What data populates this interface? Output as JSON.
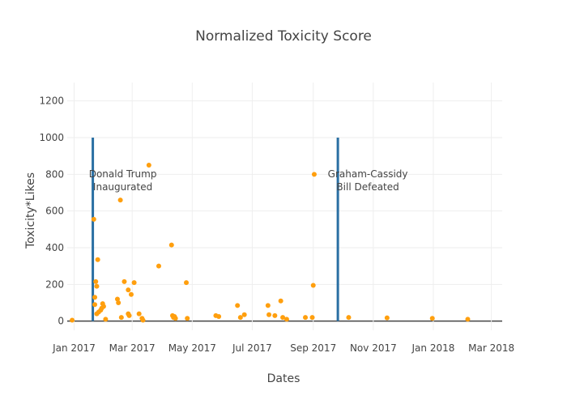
{
  "chart_data": {
    "type": "scatter",
    "title": "Normalized Toxicity Score",
    "xlabel": "Dates",
    "ylabel": "Toxicity*Likes",
    "xlim": [
      "2016-12-25",
      "2018-03-12"
    ],
    "ylim": [
      -50,
      1300
    ],
    "yticks": [
      0,
      200,
      400,
      600,
      800,
      1000,
      1200
    ],
    "xticks": [
      {
        "date": "2017-01-01",
        "label": "Jan 2017"
      },
      {
        "date": "2017-03-01",
        "label": "Mar 2017"
      },
      {
        "date": "2017-05-01",
        "label": "May 2017"
      },
      {
        "date": "2017-07-01",
        "label": "Jul 2017"
      },
      {
        "date": "2017-09-01",
        "label": "Sep 2017"
      },
      {
        "date": "2017-11-01",
        "label": "Nov 2017"
      },
      {
        "date": "2018-01-01",
        "label": "Jan 2018"
      },
      {
        "date": "2018-03-01",
        "label": "Mar 2018"
      }
    ],
    "grid": true,
    "marker_color": "#ff9f0e",
    "event_line_color": "#2a6fa3",
    "events": [
      {
        "date": "2017-01-20",
        "y_top": 1000,
        "label_line1": "Donald Trump",
        "label_line2": "Inaugurated",
        "label_y": 730
      },
      {
        "date": "2017-09-26",
        "y_top": 1000,
        "label_line1": "Graham-Cassidy",
        "label_line2": "Bill Defeated",
        "label_y": 730
      }
    ],
    "series": [
      {
        "x": [
          "2016-12-30",
          "2017-01-21",
          "2017-01-22",
          "2017-01-22",
          "2017-01-23",
          "2017-01-24",
          "2017-01-25",
          "2017-01-24",
          "2017-01-26",
          "2017-01-28",
          "2017-01-29",
          "2017-01-30",
          "2017-01-31",
          "2017-02-02",
          "2017-02-14",
          "2017-02-15",
          "2017-02-17",
          "2017-02-18",
          "2017-02-21",
          "2017-02-25",
          "2017-02-25",
          "2017-02-26",
          "2017-02-28",
          "2017-03-03",
          "2017-03-08",
          "2017-03-11",
          "2017-03-12",
          "2017-03-18",
          "2017-03-28",
          "2017-04-10",
          "2017-04-11",
          "2017-04-12",
          "2017-04-13",
          "2017-04-14",
          "2017-04-25",
          "2017-04-26",
          "2017-05-25",
          "2017-05-28",
          "2017-06-16",
          "2017-06-19",
          "2017-06-23",
          "2017-07-17",
          "2017-07-18",
          "2017-07-24",
          "2017-07-30",
          "2017-08-01",
          "2017-08-05",
          "2017-08-24",
          "2017-08-31",
          "2017-09-01",
          "2017-09-02",
          "2017-10-07",
          "2017-11-15",
          "2017-12-31",
          "2018-02-05"
        ],
        "y": [
          5,
          555,
          130,
          90,
          215,
          190,
          335,
          40,
          50,
          60,
          70,
          95,
          80,
          10,
          120,
          100,
          660,
          20,
          215,
          170,
          40,
          30,
          145,
          210,
          40,
          15,
          5,
          850,
          300,
          415,
          30,
          20,
          25,
          15,
          210,
          15,
          30,
          25,
          85,
          20,
          35,
          85,
          35,
          30,
          110,
          20,
          10,
          20,
          20,
          195,
          800,
          20,
          18,
          15,
          10
        ]
      }
    ]
  }
}
